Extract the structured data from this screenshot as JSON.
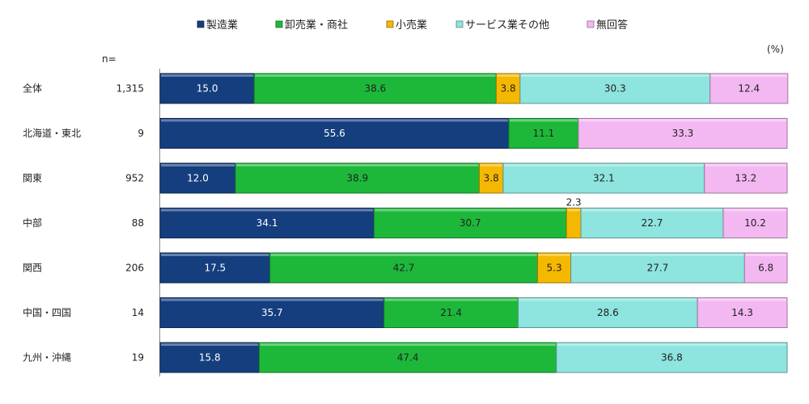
{
  "chart_data": {
    "type": "bar",
    "orientation": "horizontal",
    "stacked": true,
    "unit_label": "(%)",
    "n_header": "n=",
    "categories": [
      "全体",
      "北海道・東北",
      "関東",
      "中部",
      "関西",
      "中国・四国",
      "九州・沖縄"
    ],
    "n": [
      "1,315",
      "9",
      "952",
      "88",
      "206",
      "14",
      "19"
    ],
    "series": [
      {
        "name": "製造業",
        "color": "#153e7e",
        "label_color": "#ffffff",
        "values": [
          15.0,
          55.6,
          12.0,
          34.1,
          17.5,
          35.7,
          15.8
        ]
      },
      {
        "name": "卸売業・商社",
        "color": "#1db83a",
        "label_color": "#222222",
        "values": [
          38.6,
          11.1,
          38.9,
          30.7,
          42.7,
          21.4,
          47.4
        ]
      },
      {
        "name": "小売業",
        "color": "#f5b800",
        "label_color": "#222222",
        "values": [
          3.8,
          null,
          3.8,
          2.3,
          5.3,
          null,
          null
        ]
      },
      {
        "name": "サービス業その他",
        "color": "#8ee4de",
        "label_color": "#222222",
        "values": [
          30.3,
          null,
          32.1,
          22.7,
          27.7,
          28.6,
          36.8
        ]
      },
      {
        "name": "無回答",
        "color": "#f3b8f1",
        "label_color": "#222222",
        "values": [
          12.4,
          33.3,
          13.2,
          10.2,
          6.8,
          14.3,
          null
        ]
      }
    ],
    "xlim": [
      0,
      100
    ],
    "legend_position": "top"
  }
}
